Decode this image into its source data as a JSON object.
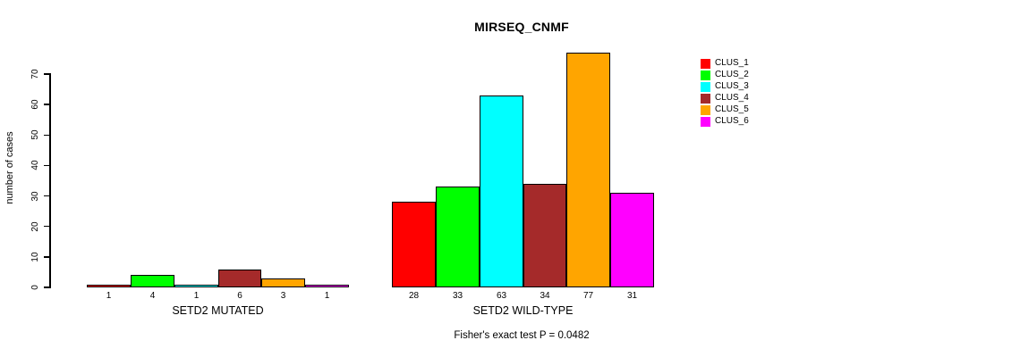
{
  "chart_data": {
    "type": "bar",
    "title": "MIRSEQ_CNMF",
    "xlabel": "",
    "ylabel": "number of cases",
    "ylim": [
      0,
      70
    ],
    "yticks": [
      0,
      10,
      20,
      30,
      40,
      50,
      60,
      70
    ],
    "grid": false,
    "legend_position": "top-right",
    "legend": [
      "CLUS_1",
      "CLUS_2",
      "CLUS_3",
      "CLUS_4",
      "CLUS_5",
      "CLUS_6"
    ],
    "series_colors": [
      "#FF0000",
      "#00FF00",
      "#00FFFF",
      "#A52A2A",
      "#FFA500",
      "#FF00FF"
    ],
    "groups": [
      {
        "label": "SETD2 MUTATED",
        "values": [
          1,
          4,
          1,
          6,
          3,
          1
        ]
      },
      {
        "label": "SETD2 WILD-TYPE",
        "values": [
          28,
          33,
          63,
          34,
          77,
          31
        ]
      }
    ],
    "bar_value_labels": {
      "SETD2 MUTATED": [
        "1",
        "4",
        "1",
        "6",
        "3",
        "1"
      ],
      "SETD2 WILD-TYPE": [
        "28",
        "33",
        "63",
        "34",
        "77",
        "31"
      ]
    },
    "annotation": "Fisher's exact test P = 0.0482"
  }
}
